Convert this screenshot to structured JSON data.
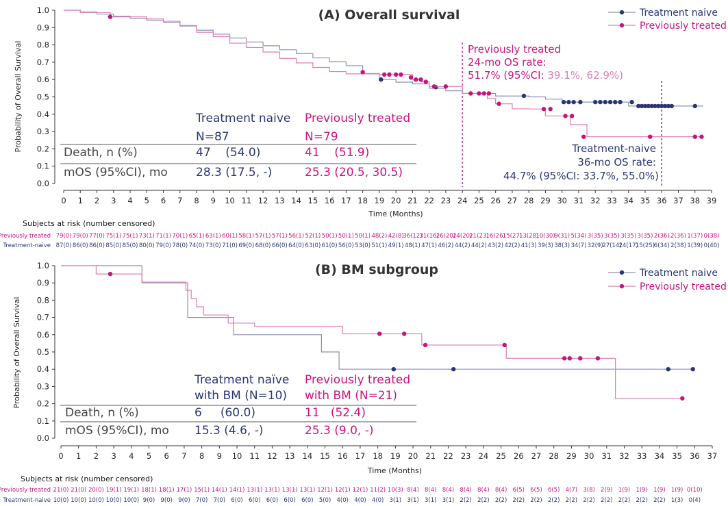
{
  "colors": {
    "naive": "#2b3572",
    "naive_line": "#8a8fb5",
    "treated": "#c8137f",
    "treated_line": "#e07cb2",
    "axis": "#333333",
    "rule": "#777777"
  },
  "chart_data": [
    {
      "id": "A",
      "type": "line",
      "title": "(A) Overall survival",
      "ylabel": "Probability of Overall Survival",
      "xlabel": "Time (Months)",
      "xlim": [
        0,
        39
      ],
      "ylim": [
        0,
        1
      ],
      "xticks": [
        "0",
        "1",
        "2",
        "3",
        "4",
        "5",
        "6",
        "7",
        "8",
        "9",
        "10",
        "11",
        "12",
        "13",
        "14",
        "15",
        "16",
        "17",
        "18",
        "19",
        "20",
        "21",
        "22",
        "23",
        "24",
        "25",
        "26",
        "27",
        "28",
        "29",
        "30",
        "31",
        "32",
        "33",
        "34",
        "35",
        "36",
        "37",
        "38",
        "39"
      ],
      "yticks": [
        "0.0",
        "0.1",
        "0.2",
        "0.3",
        "0.4",
        "0.5",
        "0.6",
        "0.7",
        "0.8",
        "0.9",
        "1.0"
      ],
      "legend": [
        "Treatment naive",
        "Previously treated"
      ],
      "series": [
        {
          "name": "Treatment naive",
          "color_key": "naive",
          "steps": [
            [
              0,
              1.0
            ],
            [
              1,
              0.99
            ],
            [
              2,
              0.978
            ],
            [
              3,
              0.966
            ],
            [
              4,
              0.954
            ],
            [
              5,
              0.943
            ],
            [
              6,
              0.931
            ],
            [
              7,
              0.909
            ],
            [
              8,
              0.885
            ],
            [
              9,
              0.862
            ],
            [
              10,
              0.84
            ],
            [
              11,
              0.817
            ],
            [
              12,
              0.795
            ],
            [
              13,
              0.772
            ],
            [
              14,
              0.75
            ],
            [
              15,
              0.725
            ],
            [
              16,
              0.703
            ],
            [
              17,
              0.68
            ],
            [
              18,
              0.635
            ],
            [
              19,
              0.6
            ],
            [
              20,
              0.585
            ],
            [
              21,
              0.575
            ],
            [
              22,
              0.55
            ],
            [
              23,
              0.535
            ],
            [
              24,
              0.52
            ],
            [
              26,
              0.505
            ],
            [
              28,
              0.5
            ],
            [
              29,
              0.487
            ],
            [
              30,
              0.47
            ],
            [
              34,
              0.447
            ],
            [
              38.5,
              0.447
            ]
          ],
          "censors": [
            [
              19.1,
              0.6
            ],
            [
              22.4,
              0.556
            ],
            [
              27.7,
              0.506
            ],
            [
              30.1,
              0.47
            ],
            [
              30.4,
              0.47
            ],
            [
              30.7,
              0.47
            ],
            [
              31.1,
              0.47
            ],
            [
              32.0,
              0.47
            ],
            [
              32.3,
              0.47
            ],
            [
              32.6,
              0.47
            ],
            [
              32.9,
              0.47
            ],
            [
              33.2,
              0.47
            ],
            [
              33.5,
              0.47
            ],
            [
              34.2,
              0.47
            ],
            [
              34.6,
              0.447
            ],
            [
              34.8,
              0.447
            ],
            [
              35.0,
              0.447
            ],
            [
              35.2,
              0.447
            ],
            [
              35.4,
              0.447
            ],
            [
              35.6,
              0.447
            ],
            [
              35.8,
              0.447
            ],
            [
              36.0,
              0.447
            ],
            [
              36.2,
              0.447
            ],
            [
              36.4,
              0.447
            ],
            [
              36.6,
              0.447
            ],
            [
              38.0,
              0.447
            ]
          ]
        },
        {
          "name": "Previously treated",
          "color_key": "treated",
          "steps": [
            [
              0,
              1.0
            ],
            [
              1,
              0.987
            ],
            [
              2.8,
              0.962
            ],
            [
              5,
              0.95
            ],
            [
              6,
              0.937
            ],
            [
              7,
              0.912
            ],
            [
              8,
              0.873
            ],
            [
              9,
              0.848
            ],
            [
              10,
              0.81
            ],
            [
              11,
              0.785
            ],
            [
              12,
              0.759
            ],
            [
              13,
              0.722
            ],
            [
              14,
              0.696
            ],
            [
              15,
              0.67
            ],
            [
              16,
              0.646
            ],
            [
              17,
              0.633
            ],
            [
              19,
              0.629
            ],
            [
              21,
              0.6
            ],
            [
              21.5,
              0.587
            ],
            [
              22,
              0.56
            ],
            [
              24,
              0.52
            ],
            [
              25.5,
              0.49
            ],
            [
              26,
              0.46
            ],
            [
              27,
              0.431
            ],
            [
              28,
              0.43
            ],
            [
              29,
              0.39
            ],
            [
              30.5,
              0.34
            ],
            [
              31.5,
              0.27
            ],
            [
              38.5,
              0.27
            ]
          ],
          "censors": [
            [
              2.8,
              0.962
            ],
            [
              18.0,
              0.643
            ],
            [
              19.3,
              0.629
            ],
            [
              19.6,
              0.629
            ],
            [
              20.0,
              0.629
            ],
            [
              20.3,
              0.629
            ],
            [
              20.9,
              0.612
            ],
            [
              21.2,
              0.6
            ],
            [
              21.5,
              0.6
            ],
            [
              21.8,
              0.587
            ],
            [
              22.3,
              0.56
            ],
            [
              23.0,
              0.56
            ],
            [
              24.5,
              0.52
            ],
            [
              25.0,
              0.52
            ],
            [
              25.3,
              0.52
            ],
            [
              25.6,
              0.52
            ],
            [
              26.2,
              0.46
            ],
            [
              28.9,
              0.43
            ],
            [
              29.3,
              0.43
            ],
            [
              30.2,
              0.39
            ],
            [
              30.6,
              0.39
            ],
            [
              31.3,
              0.27
            ],
            [
              35.3,
              0.27
            ],
            [
              38.0,
              0.27
            ],
            [
              38.4,
              0.27
            ]
          ]
        }
      ],
      "annotations": {
        "treated_rate": {
          "line1": "Previously treated",
          "line2": "24-mo OS rate:",
          "line3_main": "51.7% (95%CI: ",
          "line3_ci": "39.1%, 62.9%)",
          "x_at": 24
        },
        "naive_rate": {
          "line1": "Treatment-naive",
          "line2": "36-mo OS rate:",
          "line3": "44.7% (95%CI: 33.7%, 55.0%)",
          "x_at": 36
        }
      },
      "stats_table": {
        "head_naive": [
          "Treatment naive",
          "N=87"
        ],
        "head_treated": [
          "Previously treated",
          "N=79"
        ],
        "rows": [
          {
            "label": "Death, n (%)",
            "naive": "47    (54.0)",
            "treated": "41    (51.9)"
          },
          {
            "label": "mOS (95%CI), mo",
            "naive": "28.3 (17.5, -)",
            "treated": "25.3 (20.5, 30.5)"
          }
        ]
      },
      "at_risk": {
        "title": "Subjects at risk (number censored)",
        "treated_label": "Previously treated",
        "naive_label": "Treatment-naive",
        "treated": [
          "79(0)",
          "79(0)",
          "77(0)",
          "75(1)",
          "75(1)",
          "73(1)",
          "71(1)",
          "70(1)",
          "65(1)",
          "63(1)",
          "60(1)",
          "58(1)",
          "57(1)",
          "57(1)",
          "56(1)",
          "52(1)",
          "50(1)",
          "50(1)",
          "50(1)",
          "48(2)",
          "42(8)",
          "36(12)",
          "31(16)",
          "26(20)",
          "24(20)",
          "21(23)",
          "16(26)",
          "15(27)",
          "13(28)",
          "10(30)",
          "9(31)",
          "5(34)",
          "3(35)",
          "3(35)",
          "3(35)",
          "3(35)",
          "2(36)",
          "2(36)",
          "1(37)",
          "0(38)"
        ],
        "naive": [
          "87(0)",
          "86(0)",
          "86(0)",
          "85(0)",
          "85(0)",
          "80(0)",
          "79(0)",
          "78(0)",
          "74(0)",
          "73(0)",
          "71(0)",
          "69(0)",
          "68(0)",
          "66(0)",
          "64(0)",
          "63(0)",
          "61(0)",
          "56(0)",
          "53(0)",
          "51(1)",
          "49(1)",
          "48(1)",
          "47(1)",
          "46(2)",
          "44(2)",
          "44(2)",
          "43(2)",
          "42(2)",
          "41(3)",
          "39(3)",
          "38(3)",
          "34(7)",
          "32(9)",
          "27(14)",
          "24(17)",
          "15(25)",
          "6(34)",
          "2(38)",
          "1(39)",
          "0(40)"
        ]
      }
    },
    {
      "id": "B",
      "type": "line",
      "title": "(B) BM subgroup",
      "ylabel": "Probability of Overall Survival",
      "xlabel": "Time (Months)",
      "xlim": [
        0,
        37
      ],
      "ylim": [
        0,
        1
      ],
      "xticks": [
        "0",
        "1",
        "2",
        "3",
        "4",
        "5",
        "6",
        "7",
        "8",
        "9",
        "10",
        "11",
        "12",
        "13",
        "14",
        "15",
        "16",
        "17",
        "18",
        "19",
        "20",
        "21",
        "22",
        "23",
        "24",
        "25",
        "26",
        "27",
        "28",
        "29",
        "30",
        "31",
        "32",
        "33",
        "34",
        "35",
        "36",
        "37"
      ],
      "yticks": [
        "0.0",
        "0.1",
        "0.2",
        "0.3",
        "0.4",
        "0.5",
        "0.6",
        "0.7",
        "0.8",
        "0.9",
        "1.0"
      ],
      "legend": [
        "Treatment naive",
        "Previously treated"
      ],
      "series": [
        {
          "name": "Treatment naive",
          "color_key": "naive",
          "steps": [
            [
              0,
              1.0
            ],
            [
              4.6,
              0.9
            ],
            [
              7.2,
              0.7
            ],
            [
              9.8,
              0.6
            ],
            [
              14.8,
              0.5
            ],
            [
              15.8,
              0.4
            ],
            [
              36.0,
              0.4
            ]
          ],
          "censors": [
            [
              18.9,
              0.4
            ],
            [
              22.3,
              0.4
            ],
            [
              34.5,
              0.4
            ],
            [
              35.9,
              0.4
            ]
          ]
        },
        {
          "name": "Previously treated",
          "color_key": "treated",
          "steps": [
            [
              0,
              1.0
            ],
            [
              2,
              0.952
            ],
            [
              4.6,
              0.905
            ],
            [
              7.1,
              0.857
            ],
            [
              7.4,
              0.81
            ],
            [
              7.7,
              0.762
            ],
            [
              8.1,
              0.714
            ],
            [
              9.5,
              0.667
            ],
            [
              11,
              0.648
            ],
            [
              16,
              0.605
            ],
            [
              20.5,
              0.54
            ],
            [
              25.3,
              0.463
            ],
            [
              31.5,
              0.231
            ],
            [
              35.3,
              0.231
            ]
          ],
          "censors": [
            [
              2.8,
              0.952
            ],
            [
              18.1,
              0.605
            ],
            [
              19.5,
              0.605
            ],
            [
              20.7,
              0.54
            ],
            [
              25.2,
              0.54
            ],
            [
              28.6,
              0.463
            ],
            [
              28.9,
              0.463
            ],
            [
              29.5,
              0.463
            ],
            [
              30.5,
              0.463
            ],
            [
              35.3,
              0.231
            ]
          ]
        }
      ],
      "stats_table": {
        "head_naive": [
          "Treatment naïve",
          "with BM (N=10)"
        ],
        "head_treated": [
          "Previously treated",
          "with BM (N=21)"
        ],
        "rows": [
          {
            "label": "Death, n (%)",
            "naive": "6     (60.0)",
            "treated": "11   (52.4)"
          },
          {
            "label": "mOS (95%CI), mo",
            "naive": "15.3 (4.6, -)",
            "treated": "25.3 (9.0, -)"
          }
        ]
      },
      "at_risk": {
        "title": "Subjects at risk (number censored)",
        "treated_label": "Previously treated",
        "naive_label": "Treatment-naive",
        "treated": [
          "21(0)",
          "21(0)",
          "20(0)",
          "19(1)",
          "19(1)",
          "18(1)",
          "18(1)",
          "17(1)",
          "15(1)",
          "14(1)",
          "14(1)",
          "13(1)",
          "13(1)",
          "13(1)",
          "13(1)",
          "12(1)",
          "12(1)",
          "12(1)",
          "11(2)",
          "10(3)",
          "8(4)",
          "8(4)",
          "8(4)",
          "8(4)",
          "8(4)",
          "8(4)",
          "6(5)",
          "6(5)",
          "6(5)",
          "4(7)",
          "3(8)",
          "2(9)",
          "1(9)",
          "1(9)",
          "1(9)",
          "1(9)",
          "0(10)"
        ],
        "naive": [
          "10(0)",
          "10(0)",
          "10(0)",
          "10(0)",
          "10(0)",
          "9(0)",
          "9(0)",
          "9(0)",
          "7(0)",
          "7(0)",
          "6(0)",
          "6(0)",
          "6(0)",
          "6(0)",
          "6(0)",
          "5(0)",
          "4(0)",
          "4(0)",
          "4(0)",
          "3(1)",
          "3(1)",
          "3(1)",
          "3(1)",
          "2(2)",
          "2(2)",
          "2(2)",
          "2(2)",
          "2(2)",
          "2(2)",
          "2(2)",
          "2(2)",
          "2(2)",
          "2(2)",
          "2(2)",
          "2(2)",
          "1(3)",
          "0(4)"
        ]
      }
    }
  ]
}
